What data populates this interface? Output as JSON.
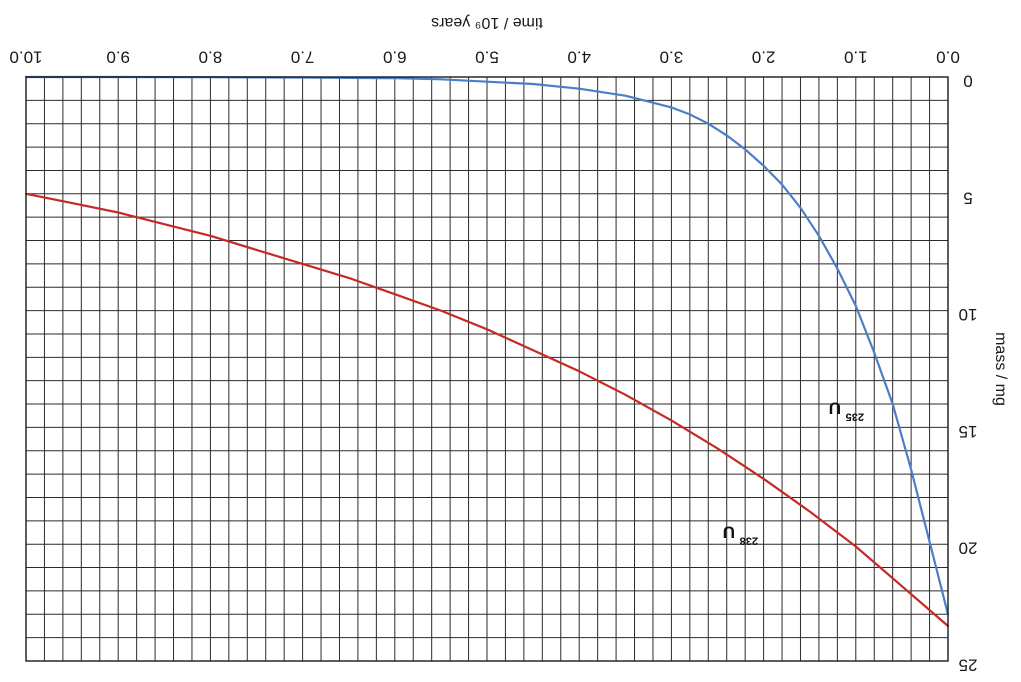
{
  "chart_data": {
    "type": "line",
    "orientation": "image rotated 180 degrees",
    "xlabel": "time / 10⁹ years",
    "ylabel": "mass / mg",
    "xlim": [
      0,
      10
    ],
    "ylim": [
      0,
      25
    ],
    "x_minor_step": 0.2,
    "y_minor_step": 1,
    "grid": true,
    "x_ticks": [
      {
        "value": 0,
        "label": "0.0"
      },
      {
        "value": 1,
        "label": "1.0"
      },
      {
        "value": 2,
        "label": "2.0"
      },
      {
        "value": 3,
        "label": "3.0"
      },
      {
        "value": 4,
        "label": "4.0"
      },
      {
        "value": 5,
        "label": "5.0"
      },
      {
        "value": 6,
        "label": "6.0"
      },
      {
        "value": 7,
        "label": "7.0"
      },
      {
        "value": 8,
        "label": "8.0"
      },
      {
        "value": 9,
        "label": "9.0"
      },
      {
        "value": 10,
        "label": "10.0"
      }
    ],
    "y_ticks": [
      {
        "value": 0,
        "label": "0"
      },
      {
        "value": 5,
        "label": "5"
      },
      {
        "value": 10,
        "label": "10"
      },
      {
        "value": 15,
        "label": "15"
      },
      {
        "value": 20,
        "label": "20"
      },
      {
        "value": 25,
        "label": "25"
      }
    ],
    "series": [
      {
        "name": "238U",
        "mass_number": "238",
        "symbol": "U",
        "color": "#c62a24",
        "label_at": [
          2.3,
          19.5
        ],
        "x": [
          0,
          0.5,
          1,
          1.5,
          2,
          2.5,
          3,
          3.5,
          4,
          4.5,
          5,
          5.5,
          6,
          6.5,
          7,
          7.5,
          8,
          8.5,
          9,
          9.5,
          10
        ],
        "y": [
          23.5,
          21.8,
          20.1,
          18.6,
          17.2,
          15.9,
          14.7,
          13.6,
          12.6,
          11.7,
          10.8,
          10.0,
          9.3,
          8.6,
          8.0,
          7.4,
          6.8,
          6.3,
          5.8,
          5.4,
          5.0
        ]
      },
      {
        "name": "235U",
        "mass_number": "235",
        "symbol": "U",
        "color": "#4a7fc8",
        "label_at": [
          1.15,
          14.2
        ],
        "x": [
          0,
          0.2,
          0.4,
          0.6,
          0.8,
          1,
          1.2,
          1.4,
          1.6,
          1.8,
          2,
          2.2,
          2.4,
          2.6,
          2.8,
          3,
          3.5,
          4,
          4.5,
          5,
          5.5,
          6,
          7,
          8,
          9,
          10
        ],
        "y": [
          23.0,
          19.9,
          16.8,
          14.0,
          11.8,
          9.8,
          8.2,
          6.8,
          5.6,
          4.6,
          3.8,
          3.1,
          2.5,
          2.0,
          1.6,
          1.3,
          0.8,
          0.5,
          0.3,
          0.2,
          0.1,
          0.05,
          0.02,
          0.01,
          0.0,
          0.0
        ]
      }
    ]
  }
}
